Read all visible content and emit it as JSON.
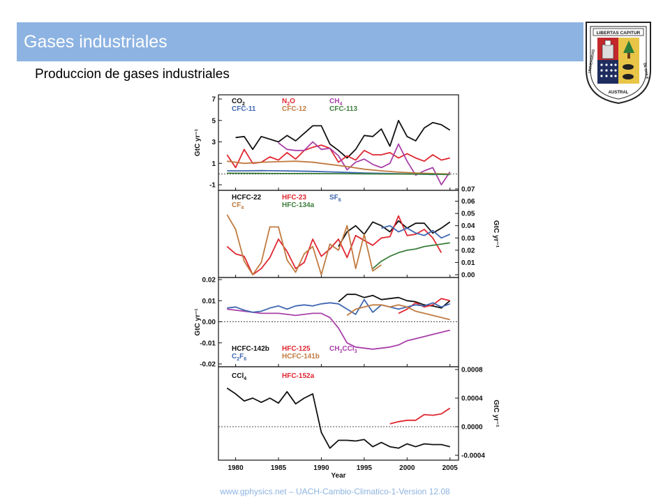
{
  "slide": {
    "title": "Gases industriales",
    "subtitle": "Produccion de gases industriales",
    "footer": "www.gphysics.net – UACH-Cambio-Climatico-1-Version 12.08",
    "title_bar_color": "#8db3e2"
  },
  "logo": {
    "motto": "LIBERTAS CAPITUR",
    "name_left": "UNIVERSIDAD",
    "name_bottom": "AUSTRAL",
    "name_right": "DE CHILE"
  },
  "chart_data": [
    {
      "type": "line",
      "ylabel": "GtC yr⁻¹",
      "ylim": [
        -1,
        7
      ],
      "yticks": [
        "-1",
        "1",
        "3",
        "5",
        "7"
      ],
      "zero_line": true,
      "series": [
        {
          "name": "CO2",
          "label": "CO",
          "sub": "2",
          "color": "#111111",
          "x": [
            1980,
            1981,
            1982,
            1983,
            1985,
            1986,
            1987,
            1988,
            1989,
            1990,
            1991,
            1992,
            1993,
            1994,
            1995,
            1996,
            1997,
            1998,
            1999,
            2000,
            2001,
            2002,
            2003,
            2004,
            2005
          ],
          "y": [
            3.4,
            3.5,
            2.3,
            3.5,
            3.0,
            3.6,
            3.1,
            3.8,
            4.5,
            4.5,
            2.8,
            2.2,
            1.5,
            2.3,
            3.6,
            3.5,
            4.2,
            2.6,
            5.0,
            3.5,
            3.1,
            4.3,
            4.8,
            4.6,
            4.1
          ]
        },
        {
          "name": "N2O",
          "label": "N",
          "sub": "2",
          "label2": "O",
          "color": "#e0262f",
          "x": [
            1979,
            1980,
            1981,
            1982,
            1983,
            1984,
            1985,
            1986,
            1987,
            1988,
            1989,
            1990,
            1991,
            1992,
            1993,
            1994,
            1995,
            1996,
            1997,
            1998,
            1999,
            2000,
            2001,
            2002,
            2003,
            2004,
            2005
          ],
          "y": [
            1.8,
            0.6,
            2.3,
            1.0,
            1.1,
            1.6,
            1.3,
            2.0,
            1.4,
            2.2,
            2.5,
            2.7,
            2.4,
            1.1,
            1.7,
            1.3,
            2.2,
            1.8,
            1.8,
            2.0,
            1.5,
            1.9,
            1.5,
            1.2,
            1.8,
            1.3,
            1.5
          ]
        },
        {
          "name": "CH4",
          "label": "CH",
          "sub": "4",
          "color": "#a83fa8",
          "x": [
            1985,
            1986,
            1987,
            1988,
            1989,
            1990,
            1991,
            1992,
            1993,
            1994,
            1995,
            1996,
            1997,
            1998,
            1999,
            2000,
            2001,
            2002,
            2003,
            2004,
            2005
          ],
          "y": [
            2.9,
            2.3,
            2.2,
            2.2,
            3.0,
            2.3,
            2.4,
            1.7,
            0.4,
            1.1,
            1.4,
            0.9,
            0.6,
            1.0,
            2.8,
            1.2,
            -0.1,
            0.3,
            0.6,
            -1.0,
            0.2
          ]
        },
        {
          "name": "CFC-11",
          "label": "CFC-11",
          "color": "#3f67b1",
          "x": [
            1979,
            1981,
            1983,
            1985,
            1987,
            1989,
            1991,
            1993,
            1995,
            1997,
            1999,
            2001,
            2003,
            2005
          ],
          "y": [
            0.3,
            0.3,
            0.32,
            0.3,
            0.28,
            0.25,
            0.2,
            0.15,
            0.1,
            0.06,
            0.03,
            0.0,
            -0.05,
            0.0
          ]
        },
        {
          "name": "CFC-12",
          "label": "CFC-12",
          "color": "#c07a3f",
          "x": [
            1979,
            1981,
            1983,
            1985,
            1987,
            1989,
            1991,
            1993,
            1995,
            1997,
            1999,
            2001,
            2003,
            2005
          ],
          "y": [
            1.2,
            1.0,
            1.1,
            1.15,
            1.2,
            1.1,
            0.9,
            0.7,
            0.45,
            0.3,
            0.18,
            0.1,
            0.05,
            0.0
          ]
        },
        {
          "name": "CFC-113",
          "label": "CFC-113",
          "color": "#3c7f3c",
          "x": [
            1979,
            1983,
            1987,
            1991,
            1995,
            1999,
            2003,
            2005
          ],
          "y": [
            0.08,
            0.06,
            0.05,
            0.04,
            0.02,
            0.0,
            -0.01,
            -0.05
          ]
        }
      ]
    },
    {
      "type": "line",
      "ylabel": "GtC yr⁻¹",
      "ylim": [
        0,
        0.07
      ],
      "yticks": [
        "0.00",
        "0.01",
        "0.02",
        "0.03",
        "0.04",
        "0.05",
        "0.06",
        "0.07"
      ],
      "series": [
        {
          "name": "HCFC-22",
          "label": "HCFC-22",
          "color": "#111111",
          "x": [
            1992,
            1993,
            1994,
            1995,
            1996,
            1997,
            1998,
            1999,
            2000,
            2001,
            2002,
            2003,
            2004,
            2005
          ],
          "y": [
            0.023,
            0.035,
            0.04,
            0.033,
            0.043,
            0.04,
            0.035,
            0.044,
            0.038,
            0.042,
            0.042,
            0.034,
            0.038,
            0.043
          ]
        },
        {
          "name": "HFC-23",
          "label": "HFC-23",
          "color": "#e0262f",
          "x": [
            1979,
            1980,
            1981,
            1982,
            1983,
            1984,
            1985,
            1986,
            1987,
            1988,
            1989,
            1990,
            1991,
            1992,
            1993,
            1994,
            1995,
            1996,
            1997,
            1998,
            1999,
            2000,
            2001,
            2002,
            2003,
            2004
          ],
          "y": [
            0.023,
            0.017,
            0.015,
            0.0,
            0.005,
            0.014,
            0.029,
            0.019,
            0.005,
            0.01,
            0.029,
            0.015,
            0.021,
            0.029,
            0.014,
            0.032,
            0.028,
            0.024,
            0.03,
            0.031,
            0.048,
            0.032,
            0.033,
            0.037,
            0.03,
            0.018
          ]
        },
        {
          "name": "SF6",
          "label": "SF",
          "sub": "6",
          "color": "#3f67b1",
          "x": [
            1997,
            1998,
            1999,
            2000,
            2001,
            2002,
            2003,
            2004,
            2005
          ],
          "y": [
            0.038,
            0.04,
            0.035,
            0.038,
            0.034,
            0.032,
            0.036,
            0.03,
            0.033
          ]
        },
        {
          "name": "CF4",
          "label": "CF",
          "sub": "4",
          "color": "#c07a3f",
          "x": [
            1979,
            1980,
            1981,
            1982,
            1983,
            1984,
            1985,
            1986,
            1987,
            1988,
            1989,
            1990,
            1991,
            1992,
            1993,
            1994,
            1995,
            1996,
            1997
          ],
          "y": [
            0.049,
            0.037,
            0.011,
            0.0,
            0.01,
            0.039,
            0.039,
            0.012,
            0.002,
            0.017,
            0.023,
            0.0,
            0.025,
            0.02,
            0.04,
            0.005,
            0.033,
            0.003,
            0.008
          ]
        },
        {
          "name": "HFC-134a",
          "label": "HFC-134a",
          "color": "#3c7f3c",
          "x": [
            1996,
            1997,
            1998,
            1999,
            2000,
            2001,
            2002,
            2003,
            2004,
            2005
          ],
          "y": [
            0.005,
            0.011,
            0.015,
            0.018,
            0.02,
            0.021,
            0.023,
            0.024,
            0.025,
            0.026
          ]
        }
      ]
    },
    {
      "type": "line",
      "ylabel": "GtC yr⁻¹",
      "ylim": [
        -0.02,
        0.02
      ],
      "yticks": [
        "-0.02",
        "-0.01",
        "0.00",
        "0.01",
        "0.02"
      ],
      "zero_line": true,
      "series": [
        {
          "name": "HCFC-142b",
          "label": "HCFC-142b",
          "color": "#111111",
          "x": [
            1992,
            1993,
            1994,
            1995,
            1996,
            1997,
            1998,
            1999,
            2000,
            2001,
            2002,
            2003,
            2004,
            2005
          ],
          "y": [
            0.0095,
            0.013,
            0.013,
            0.0115,
            0.0125,
            0.0105,
            0.011,
            0.0115,
            0.01,
            0.0095,
            0.008,
            0.0075,
            0.0065,
            0.01
          ]
        },
        {
          "name": "HFC-125",
          "label": "HFC-125",
          "color": "#e0262f",
          "x": [
            1999,
            2000,
            2001,
            2002,
            2003,
            2004,
            2005
          ],
          "y": [
            0.004,
            0.006,
            0.009,
            0.007,
            0.008,
            0.011,
            0.01
          ]
        },
        {
          "name": "CH3CCl3",
          "label": "CH",
          "sub": "3",
          "label2": "CCl",
          "sub2": "3",
          "color": "#a83fa8",
          "x": [
            1979,
            1981,
            1983,
            1985,
            1987,
            1989,
            1990,
            1991,
            1992,
            1993,
            1994,
            1995,
            1996,
            1997,
            1998,
            1999,
            2000,
            2001,
            2002,
            2003,
            2004,
            2005
          ],
          "y": [
            0.006,
            0.005,
            0.004,
            0.004,
            0.003,
            0.004,
            0.004,
            0.002,
            -0.003,
            -0.01,
            -0.012,
            -0.0125,
            -0.013,
            -0.0125,
            -0.012,
            -0.011,
            -0.009,
            -0.008,
            -0.007,
            -0.006,
            -0.005,
            -0.004
          ]
        },
        {
          "name": "C2F6",
          "label": "C",
          "sub": "2",
          "label2": "F",
          "sub2": "6",
          "color": "#3f67b1",
          "x": [
            1979,
            1980,
            1981,
            1982,
            1983,
            1984,
            1985,
            1986,
            1987,
            1988,
            1989,
            1990,
            1991,
            1992,
            1993,
            1994,
            1995,
            1996,
            1997,
            1998,
            1999,
            2000,
            2001,
            2002,
            2003,
            2004,
            2005
          ],
          "y": [
            0.0065,
            0.007,
            0.0055,
            0.0045,
            0.005,
            0.0065,
            0.0075,
            0.006,
            0.0075,
            0.008,
            0.0075,
            0.0085,
            0.009,
            0.0085,
            0.006,
            0.0035,
            0.0105,
            0.0045,
            0.008,
            0.007,
            0.006,
            0.007,
            0.008,
            0.0075,
            0.009,
            0.007,
            0.0085
          ]
        },
        {
          "name": "HCFC-141b",
          "label": "HCFC-141b",
          "color": "#c07a3f",
          "x": [
            1993,
            1994,
            1995,
            1996,
            1997,
            1998,
            1999,
            2000,
            2001,
            2002,
            2003,
            2004,
            2005
          ],
          "y": [
            0.003,
            0.006,
            0.007,
            0.008,
            0.008,
            0.007,
            0.008,
            0.007,
            0.005,
            0.004,
            0.003,
            0.002,
            0.001
          ]
        }
      ]
    },
    {
      "type": "line",
      "ylabel": "GtC yr⁻¹",
      "xlabel": "Year",
      "ylim": [
        -0.0004,
        0.0008
      ],
      "yticks": [
        "-0.0004",
        "0.0000",
        "0.0004",
        "0.0008"
      ],
      "xticks": [
        "1980",
        "1985",
        "1990",
        "1995",
        "2000",
        "2005"
      ],
      "zero_line": true,
      "series": [
        {
          "name": "CCl4",
          "label": "CCl",
          "sub": "4",
          "color": "#111111",
          "x": [
            1979,
            1980,
            1981,
            1982,
            1983,
            1984,
            1985,
            1986,
            1987,
            1988,
            1989,
            1990,
            1991,
            1992,
            1993,
            1994,
            1995,
            1996,
            1997,
            1998,
            1999,
            2000,
            2001,
            2002,
            2003,
            2004,
            2005
          ],
          "y": [
            0.00054,
            0.00046,
            0.00036,
            0.0004,
            0.00034,
            0.0004,
            0.00033,
            0.00049,
            0.00032,
            0.0004,
            0.00046,
            -8e-05,
            -0.0003,
            -0.00019,
            -0.00019,
            -0.0002,
            -0.00018,
            -0.00028,
            -0.00022,
            -0.00028,
            -0.0003,
            -0.00024,
            -0.00028,
            -0.00024,
            -0.00025,
            -0.00025,
            -0.00028
          ]
        },
        {
          "name": "HFC-152a",
          "label": "HFC-152a",
          "color": "#e0262f",
          "x": [
            1998,
            1999,
            2000,
            2001,
            2002,
            2003,
            2004,
            2005
          ],
          "y": [
            4e-05,
            7e-05,
            9e-05,
            9e-05,
            0.00017,
            0.00016,
            0.00018,
            0.00026
          ]
        }
      ]
    }
  ]
}
